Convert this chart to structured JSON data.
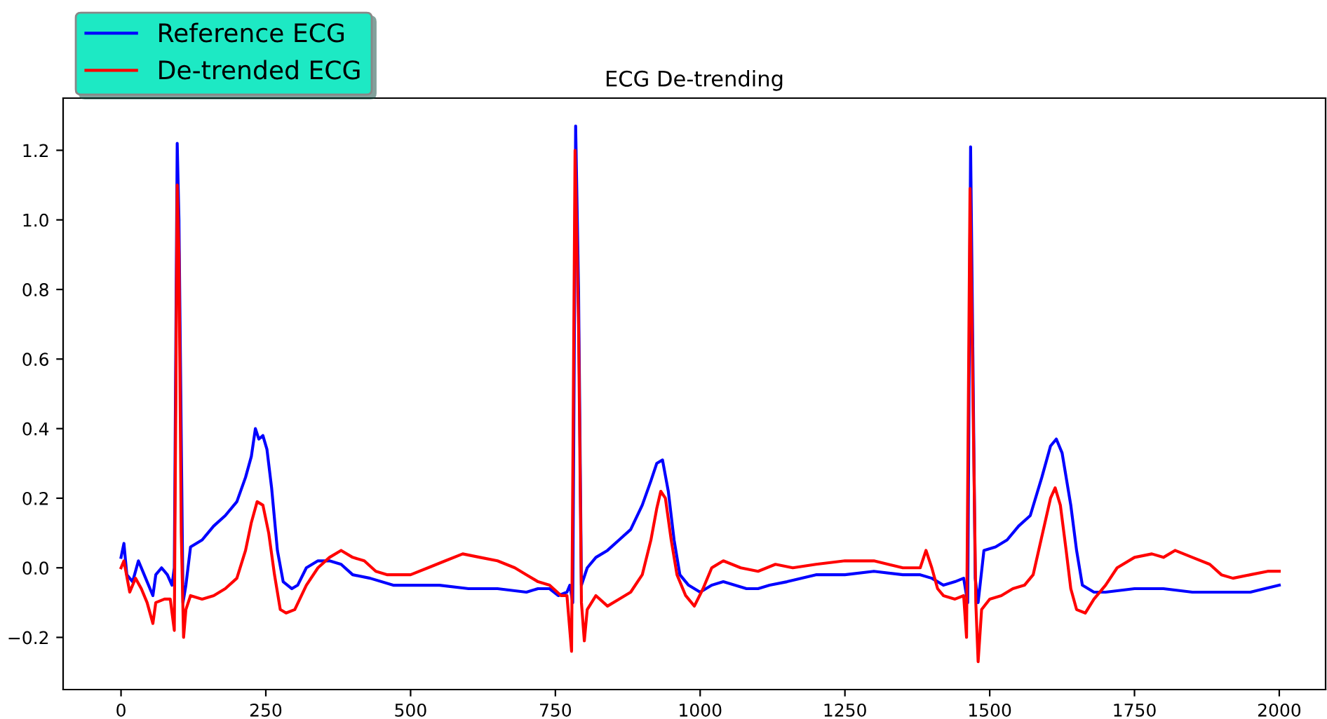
{
  "chart_data": {
    "type": "line",
    "title": "ECG De-trending",
    "legend": "top left",
    "grid": false,
    "xlim": [
      -100,
      2080
    ],
    "xticks": [
      0,
      250,
      500,
      750,
      1000,
      1250,
      1500,
      1750,
      2000
    ],
    "ylim": [
      -0.35,
      1.35
    ],
    "yticks": [
      {
        "value": -0.2,
        "label": "−0.2"
      },
      {
        "value": 0,
        "label": "0.0"
      },
      {
        "value": 0.2,
        "label": "0.2"
      },
      {
        "value": 0.4,
        "label": "0.4"
      },
      {
        "value": 0.6,
        "label": "0.6"
      },
      {
        "value": 0.8,
        "label": "0.8"
      },
      {
        "value": 1.0,
        "label": "1.0"
      },
      {
        "value": 1.2,
        "label": "1.2"
      }
    ],
    "series": [
      {
        "name": "Reference ECG",
        "color": "#0000ff",
        "x": [
          0,
          5,
          10,
          20,
          30,
          40,
          55,
          60,
          70,
          80,
          88,
          92,
          97,
          100,
          107,
          112,
          120,
          140,
          160,
          180,
          200,
          215,
          225,
          232,
          238,
          245,
          252,
          260,
          270,
          280,
          295,
          305,
          320,
          340,
          360,
          380,
          400,
          430,
          470,
          500,
          550,
          600,
          650,
          700,
          720,
          740,
          755,
          770,
          775,
          780,
          785,
          790,
          795,
          805,
          820,
          840,
          860,
          880,
          900,
          915,
          925,
          935,
          945,
          955,
          965,
          980,
          1000,
          1020,
          1040,
          1060,
          1080,
          1100,
          1120,
          1150,
          1200,
          1250,
          1300,
          1350,
          1380,
          1400,
          1420,
          1440,
          1455,
          1462,
          1467,
          1471,
          1475,
          1480,
          1490,
          1510,
          1530,
          1550,
          1570,
          1590,
          1605,
          1615,
          1625,
          1640,
          1650,
          1660,
          1680,
          1700,
          1750,
          1800,
          1850,
          1900,
          1950,
          2000
        ],
        "values": [
          0.03,
          0.07,
          -0.02,
          -0.04,
          0.02,
          -0.02,
          -0.08,
          -0.02,
          0.0,
          -0.02,
          -0.05,
          0.0,
          1.22,
          1.0,
          -0.1,
          -0.05,
          0.06,
          0.08,
          0.12,
          0.15,
          0.19,
          0.26,
          0.32,
          0.4,
          0.37,
          0.38,
          0.34,
          0.23,
          0.05,
          -0.04,
          -0.06,
          -0.05,
          0.0,
          0.02,
          0.02,
          0.01,
          -0.02,
          -0.03,
          -0.05,
          -0.05,
          -0.05,
          -0.06,
          -0.06,
          -0.07,
          -0.06,
          -0.06,
          -0.08,
          -0.07,
          -0.05,
          -0.1,
          1.27,
          0.8,
          -0.05,
          0.0,
          0.03,
          0.05,
          0.08,
          0.11,
          0.18,
          0.25,
          0.3,
          0.31,
          0.22,
          0.08,
          -0.02,
          -0.05,
          -0.07,
          -0.05,
          -0.04,
          -0.05,
          -0.06,
          -0.06,
          -0.05,
          -0.04,
          -0.02,
          -0.02,
          -0.01,
          -0.02,
          -0.02,
          -0.03,
          -0.05,
          -0.04,
          -0.03,
          -0.1,
          1.21,
          0.6,
          -0.03,
          -0.1,
          0.05,
          0.06,
          0.08,
          0.12,
          0.15,
          0.26,
          0.35,
          0.37,
          0.33,
          0.18,
          0.05,
          -0.05,
          -0.07,
          -0.07,
          -0.06,
          -0.06,
          -0.07,
          -0.07,
          -0.07,
          -0.05
        ]
      },
      {
        "name": "De-trended ECG",
        "color": "#ff0000",
        "x": [
          0,
          5,
          15,
          25,
          35,
          45,
          55,
          60,
          75,
          85,
          92,
          97,
          100,
          104,
          108,
          112,
          120,
          140,
          160,
          180,
          200,
          215,
          225,
          235,
          245,
          255,
          265,
          275,
          285,
          300,
          320,
          340,
          360,
          380,
          400,
          420,
          440,
          460,
          480,
          500,
          530,
          560,
          590,
          620,
          650,
          680,
          700,
          720,
          740,
          760,
          770,
          778,
          784,
          790,
          795,
          800,
          805,
          820,
          840,
          860,
          880,
          900,
          915,
          925,
          932,
          940,
          950,
          960,
          975,
          990,
          1005,
          1020,
          1040,
          1070,
          1100,
          1130,
          1160,
          1200,
          1250,
          1300,
          1350,
          1380,
          1390,
          1400,
          1410,
          1420,
          1440,
          1455,
          1460,
          1466,
          1471,
          1476,
          1480,
          1486,
          1500,
          1520,
          1540,
          1560,
          1575,
          1590,
          1605,
          1613,
          1622,
          1632,
          1640,
          1650,
          1665,
          1680,
          1700,
          1720,
          1750,
          1780,
          1800,
          1820,
          1850,
          1880,
          1900,
          1920,
          1950,
          1980,
          2000
        ],
        "values": [
          0.0,
          0.02,
          -0.07,
          -0.03,
          -0.06,
          -0.1,
          -0.16,
          -0.1,
          -0.09,
          -0.09,
          -0.18,
          1.1,
          0.9,
          0.1,
          -0.2,
          -0.12,
          -0.08,
          -0.09,
          -0.08,
          -0.06,
          -0.03,
          0.05,
          0.13,
          0.19,
          0.18,
          0.1,
          -0.02,
          -0.12,
          -0.13,
          -0.12,
          -0.05,
          0.0,
          0.03,
          0.05,
          0.03,
          0.02,
          -0.01,
          -0.02,
          -0.02,
          -0.02,
          0.0,
          0.02,
          0.04,
          0.03,
          0.02,
          0.0,
          -0.02,
          -0.04,
          -0.05,
          -0.08,
          -0.08,
          -0.24,
          1.2,
          0.7,
          -0.1,
          -0.21,
          -0.12,
          -0.08,
          -0.11,
          -0.09,
          -0.07,
          -0.02,
          0.08,
          0.17,
          0.22,
          0.2,
          0.08,
          -0.02,
          -0.08,
          -0.11,
          -0.06,
          0.0,
          0.02,
          0.0,
          -0.01,
          0.01,
          0.0,
          0.01,
          0.02,
          0.02,
          0.0,
          0.0,
          0.05,
          0.0,
          -0.06,
          -0.08,
          -0.09,
          -0.08,
          -0.2,
          1.09,
          0.5,
          -0.1,
          -0.27,
          -0.12,
          -0.09,
          -0.08,
          -0.06,
          -0.05,
          -0.02,
          0.09,
          0.2,
          0.23,
          0.18,
          0.05,
          -0.06,
          -0.12,
          -0.13,
          -0.09,
          -0.05,
          0.0,
          0.03,
          0.04,
          0.03,
          0.05,
          0.03,
          0.01,
          -0.02,
          -0.03,
          -0.02,
          -0.01,
          -0.01
        ]
      }
    ]
  }
}
